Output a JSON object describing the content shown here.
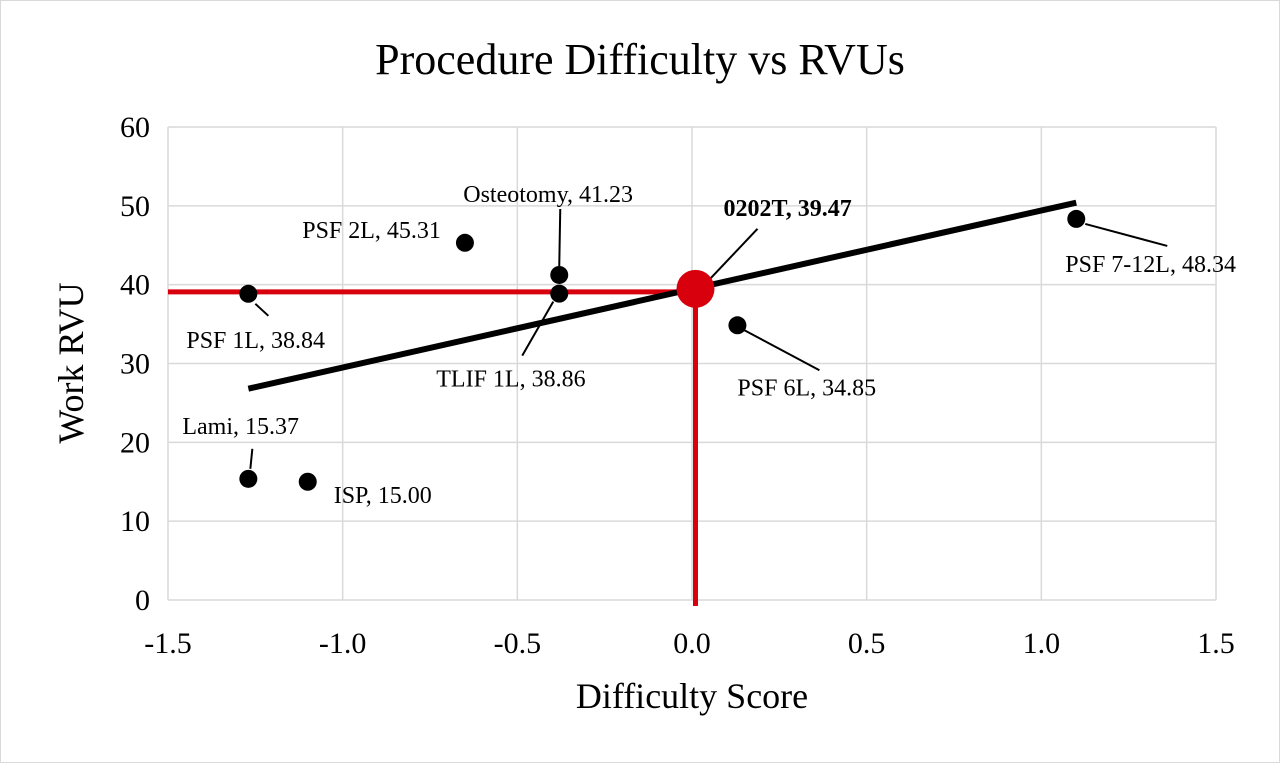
{
  "chart_data": {
    "type": "scatter",
    "title": "Procedure Difficulty vs RVUs",
    "xlabel": "Difficulty Score",
    "ylabel": "Work RVU",
    "xlim": [
      -1.5,
      1.5
    ],
    "ylim": [
      0,
      60
    ],
    "x_ticks": [
      "-1.5",
      "-1.0",
      "-0.5",
      "0.0",
      "0.5",
      "1.0",
      "1.5"
    ],
    "y_ticks": [
      "0",
      "10",
      "20",
      "30",
      "40",
      "50",
      "60"
    ],
    "grid": true,
    "legend": "none",
    "points": [
      {
        "label": "PSF 1L, 38.84",
        "x": -1.27,
        "y": 38.84
      },
      {
        "label": "PSF 2L, 45.31",
        "x": -0.65,
        "y": 45.31
      },
      {
        "label": "Osteotomy, 41.23",
        "x": -0.38,
        "y": 41.23
      },
      {
        "label": "TLIF 1L, 38.86",
        "x": -0.38,
        "y": 38.86
      },
      {
        "label": "Lami, 15.37",
        "x": -1.27,
        "y": 15.37
      },
      {
        "label": "ISP, 15.00",
        "x": -1.1,
        "y": 15.0
      },
      {
        "label": "PSF 6L, 34.85",
        "x": 0.13,
        "y": 34.85
      },
      {
        "label": "PSF 7-12L, 48.34",
        "x": 1.1,
        "y": 48.34
      }
    ],
    "highlight": {
      "label": "0202T, 39.47",
      "x": 0.01,
      "y": 39.47,
      "color": "#d9000d"
    },
    "trendline": {
      "x": [
        -1.27,
        1.1
      ],
      "y": [
        26.8,
        50.4
      ],
      "color": "#000000"
    },
    "reference_lines": {
      "color": "#d9000d"
    }
  }
}
